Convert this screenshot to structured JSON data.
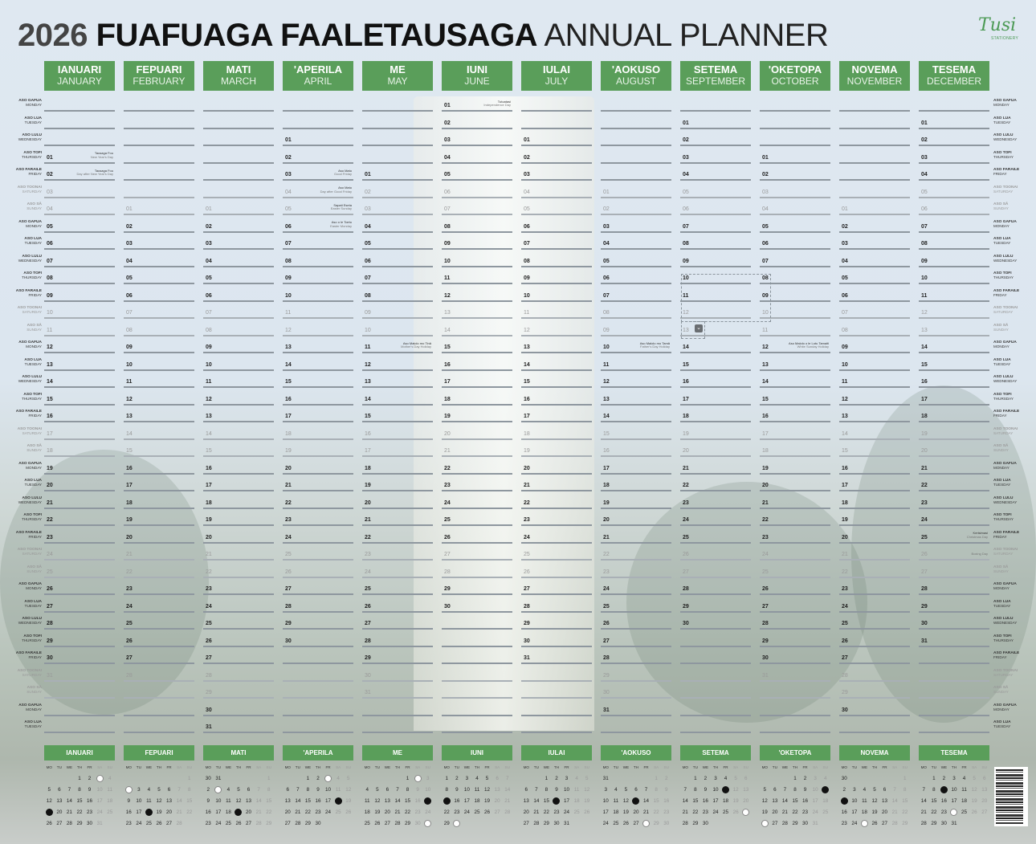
{
  "title": {
    "year": "2026",
    "main": "FUAFUAGA FAALETAUSAGA",
    "sub": "ANNUAL PLANNER"
  },
  "logo": {
    "name": "Tusi",
    "tagline": "STATIONERY"
  },
  "colors": {
    "accent": "#5a9e5a",
    "line": "#8e979f"
  },
  "weekdays": [
    {
      "local": "ASO GAFUA",
      "en": "MONDAY"
    },
    {
      "local": "ASO LUA",
      "en": "TUESDAY"
    },
    {
      "local": "ASO LULU",
      "en": "WEDNESDAY"
    },
    {
      "local": "ASO TOFI",
      "en": "THURSDAY"
    },
    {
      "local": "ASO FARAILE",
      "en": "FRIDAY"
    },
    {
      "local": "ASO TOONAI",
      "en": "SATURDAY"
    },
    {
      "local": "ASO SĀ",
      "en": "SUNDAY"
    }
  ],
  "mini_weekdays": [
    "MO",
    "TU",
    "WE",
    "TH",
    "FR",
    "SA",
    "SU"
  ],
  "months": [
    {
      "local": "IANUARI",
      "en": "JANUARY",
      "first_weekday": 3,
      "days": 31,
      "moons": {
        "full": [
          3
        ],
        "new": [
          19
        ]
      }
    },
    {
      "local": "FEPUARI",
      "en": "FEBRUARY",
      "first_weekday": 6,
      "days": 28,
      "moons": {
        "full": [
          2
        ],
        "new": [
          18
        ]
      }
    },
    {
      "local": "MATI",
      "en": "MARCH",
      "first_weekday": 6,
      "days": 31,
      "moons": {
        "full": [
          3
        ],
        "new": [
          19
        ]
      }
    },
    {
      "local": "'APERILA",
      "en": "APRIL",
      "first_weekday": 2,
      "days": 30,
      "moons": {
        "full": [
          3
        ],
        "new": [
          18
        ]
      }
    },
    {
      "local": "ME",
      "en": "MAY",
      "first_weekday": 4,
      "days": 31,
      "moons": {
        "full": [
          2,
          31
        ],
        "new": [
          17
        ]
      }
    },
    {
      "local": "IUNI",
      "en": "JUNE",
      "first_weekday": 0,
      "days": 30,
      "moons": {
        "full": [
          30
        ],
        "new": [
          15
        ]
      }
    },
    {
      "local": "IULAI",
      "en": "JULY",
      "first_weekday": 2,
      "days": 31,
      "moons": {
        "full": [],
        "new": [
          16
        ]
      }
    },
    {
      "local": "'AOKUSO",
      "en": "AUGUST",
      "first_weekday": 5,
      "days": 31,
      "moons": {
        "full": [
          28
        ],
        "new": [
          13
        ]
      }
    },
    {
      "local": "SETEMA",
      "en": "SEPTEMBER",
      "first_weekday": 1,
      "days": 30,
      "moons": {
        "full": [
          27
        ],
        "new": [
          11
        ]
      }
    },
    {
      "local": "'OKETOPA",
      "en": "OCTOBER",
      "first_weekday": 3,
      "days": 31,
      "moons": {
        "full": [
          26
        ],
        "new": [
          11
        ]
      }
    },
    {
      "local": "NOVEMA",
      "en": "NOVEMBER",
      "first_weekday": 6,
      "days": 30,
      "moons": {
        "full": [
          25
        ],
        "new": [
          9
        ]
      }
    },
    {
      "local": "TESEMA",
      "en": "DECEMBER",
      "first_weekday": 1,
      "days": 31,
      "moons": {
        "full": [
          24
        ],
        "new": [
          9
        ]
      }
    }
  ],
  "holidays": [
    {
      "month": 0,
      "day": 1,
      "local": "Tausaga Fou",
      "en": "New Year's Day"
    },
    {
      "month": 0,
      "day": 2,
      "local": "Tausaga Fou",
      "en": "Day after New Year's Day"
    },
    {
      "month": 3,
      "day": 3,
      "local": "Aso Matu",
      "en": "Good Friday"
    },
    {
      "month": 3,
      "day": 4,
      "local": "Aso Matu",
      "en": "Day after Good Friday"
    },
    {
      "month": 3,
      "day": 5,
      "local": "Sapati Eseta",
      "en": "Easter Sunday"
    },
    {
      "month": 3,
      "day": 6,
      "local": "Aso o le Toetu",
      "en": "Easter Monday"
    },
    {
      "month": 4,
      "day": 11,
      "local": "Aso Malolo mo Tinā",
      "en": "Mother's Day Holiday"
    },
    {
      "month": 5,
      "day": 1,
      "local": "Tutoatasi",
      "en": "Independence Day"
    },
    {
      "month": 7,
      "day": 10,
      "local": "Aso Malolo mo Tamā",
      "en": "Father's Day Holiday"
    },
    {
      "month": 9,
      "day": 12,
      "local": "Aso Malolo o le Lotu Tamaiti",
      "en": "White Sunday Holiday"
    },
    {
      "month": 11,
      "day": 25,
      "local": "Kerisimasi",
      "en": "Christmas Day"
    },
    {
      "month": 11,
      "day": 26,
      "local": "",
      "en": "Boxing Day"
    }
  ],
  "selection": {
    "button_icon": "chevron-down-icon"
  }
}
